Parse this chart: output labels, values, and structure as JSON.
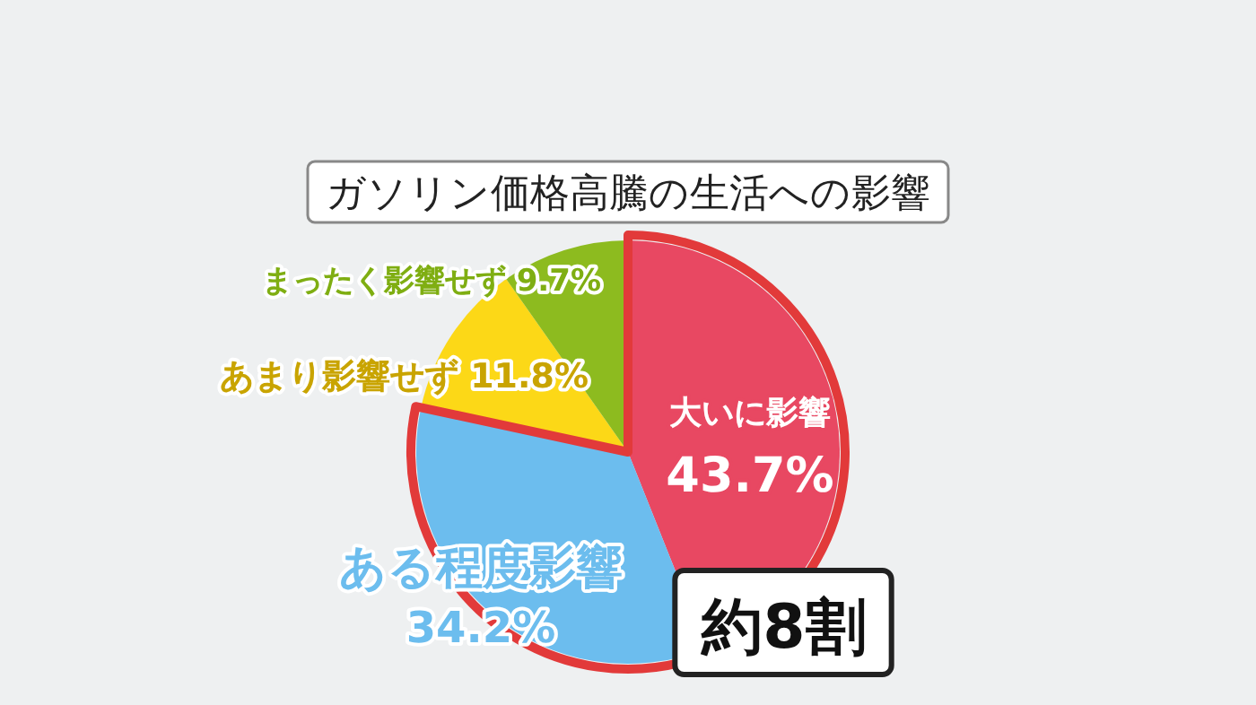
{
  "chart_data": {
    "type": "pie",
    "title": "ガソリン価格高騰の生活への影響",
    "categories": [
      "大いに影響",
      "ある程度影響",
      "あまり影響せず",
      "まったく影響せず"
    ],
    "values": [
      43.7,
      34.2,
      11.8,
      9.7
    ],
    "colors": [
      "#e84862",
      "#6cbdee",
      "#fcd817",
      "#8dbb1f"
    ],
    "value_labels": [
      "43.7%",
      "34.2%",
      "11.8%",
      "9.7%"
    ],
    "annotations": [
      "約8割"
    ]
  }
}
